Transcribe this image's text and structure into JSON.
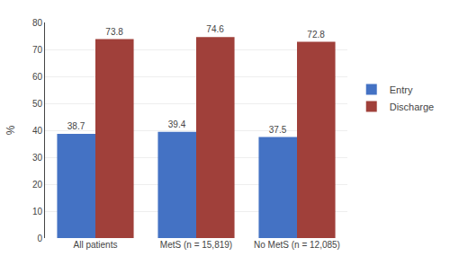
{
  "chart_data": {
    "type": "bar",
    "categories": [
      "All patients",
      "MetS (n = 15,819)",
      "No MetS (n = 12,085)"
    ],
    "series": [
      {
        "name": "Entry",
        "color": "#4472C4",
        "values": [
          38.7,
          39.4,
          37.5
        ]
      },
      {
        "name": "Discharge",
        "color": "#A0403A",
        "values": [
          73.8,
          74.6,
          72.8
        ]
      }
    ],
    "ylabel": "%",
    "ylim": [
      0,
      80
    ],
    "yticks": [
      0,
      10,
      20,
      30,
      40,
      50,
      60,
      70,
      80
    ],
    "grid": true,
    "data_labels": true,
    "legend": "right"
  }
}
